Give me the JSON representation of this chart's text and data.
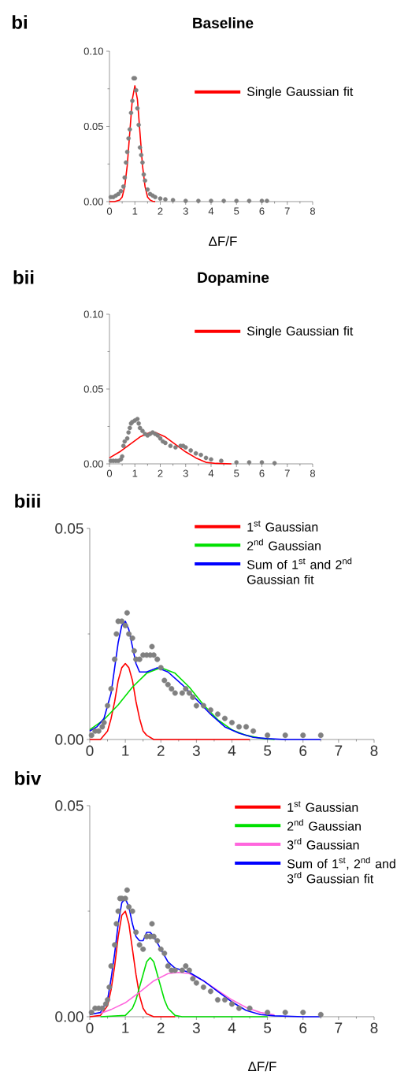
{
  "chart_data": [
    {
      "type": "scatter",
      "title": "Baseline",
      "xlabel": "ΔF/F",
      "annotations": [
        "**bi**"
      ],
      "xlim": [
        0,
        8
      ],
      "ylim": [
        0,
        0.1
      ],
      "xticks": [
        0,
        1,
        2,
        3,
        4,
        5,
        6,
        7,
        8
      ],
      "yticks": [
        {
          "value": 0,
          "label": "0.00"
        },
        {
          "value": 0.05,
          "label": "0.05"
        },
        {
          "value": 0.1,
          "label": "0.10"
        }
      ],
      "legend": "top right",
      "series": [
        {
          "type": "scatter",
          "marker": "circle",
          "color": "#808080",
          "x": [
            0.05,
            0.15,
            0.25,
            0.35,
            0.45,
            0.55,
            0.6,
            0.65,
            0.7,
            0.75,
            0.8,
            0.85,
            0.9,
            0.95,
            1.0,
            1.05,
            1.1,
            1.15,
            1.2,
            1.25,
            1.3,
            1.35,
            1.4,
            1.5,
            1.6,
            1.7,
            1.8,
            2.0,
            2.2,
            2.5,
            3.0,
            3.5,
            4.0,
            4.5,
            5.0,
            5.5,
            6.0,
            6.2
          ],
          "values": [
            0.003,
            0.003,
            0.004,
            0.005,
            0.007,
            0.01,
            0.016,
            0.026,
            0.033,
            0.042,
            0.048,
            0.059,
            0.067,
            0.082,
            0.082,
            0.074,
            0.062,
            0.051,
            0.036,
            0.031,
            0.026,
            0.018,
            0.014,
            0.008,
            0.005,
            0.004,
            0.003,
            0.002,
            0.0015,
            0.001,
            0.0005,
            0.0005,
            0.0005,
            0.0005,
            0.0005,
            0.0005,
            0.0005,
            0.0005
          ]
        },
        {
          "type": "line",
          "name": "Single Gaussian fit",
          "color": "#ff0000",
          "x": [
            0.0,
            0.2,
            0.4,
            0.5,
            0.6,
            0.7,
            0.8,
            0.9,
            1.0,
            1.1,
            1.2,
            1.3,
            1.4,
            1.5,
            1.6,
            1.7,
            1.8
          ],
          "values": [
            0,
            0,
            0.001,
            0.003,
            0.01,
            0.024,
            0.046,
            0.068,
            0.077,
            0.068,
            0.046,
            0.024,
            0.01,
            0.003,
            0.001,
            0.0003,
            0
          ]
        }
      ]
    },
    {
      "type": "scatter",
      "title": "Dopamine",
      "annotations": [
        "**bii**"
      ],
      "xlim": [
        0,
        8
      ],
      "ylim": [
        0,
        0.1
      ],
      "xticks": [
        0,
        1,
        2,
        3,
        4,
        5,
        6,
        7,
        8
      ],
      "yticks": [
        {
          "value": 0,
          "label": "0.00"
        },
        {
          "value": 0.05,
          "label": "0.05"
        },
        {
          "value": 0.1,
          "label": "0.10"
        }
      ],
      "legend": "top right",
      "series": [
        {
          "type": "scatter",
          "marker": "circle",
          "color": "#808080",
          "x": [
            0.05,
            0.15,
            0.25,
            0.35,
            0.45,
            0.5,
            0.55,
            0.6,
            0.7,
            0.75,
            0.8,
            0.85,
            0.9,
            1.0,
            1.1,
            1.15,
            1.2,
            1.3,
            1.4,
            1.5,
            1.6,
            1.7,
            1.8,
            1.9,
            2.0,
            2.1,
            2.2,
            2.4,
            2.6,
            2.8,
            2.9,
            3.0,
            3.2,
            3.4,
            3.6,
            3.8,
            4.0,
            4.4,
            5.0,
            5.5,
            6.0,
            6.5
          ],
          "values": [
            0.002,
            0.002,
            0.002,
            0.002,
            0.003,
            0.005,
            0.012,
            0.015,
            0.017,
            0.021,
            0.024,
            0.027,
            0.028,
            0.029,
            0.03,
            0.027,
            0.024,
            0.022,
            0.02,
            0.019,
            0.02,
            0.021,
            0.02,
            0.019,
            0.017,
            0.015,
            0.014,
            0.012,
            0.011,
            0.012,
            0.012,
            0.011,
            0.009,
            0.007,
            0.006,
            0.004,
            0.003,
            0.002,
            0.001,
            0.001,
            0.001,
            0.0005
          ]
        },
        {
          "type": "line",
          "name": "Single Gaussian fit",
          "color": "#ff0000",
          "x": [
            0.0,
            0.4,
            0.8,
            1.2,
            1.6,
            1.8,
            2.2,
            2.6,
            3.0,
            3.4,
            3.8,
            4.2,
            4.8
          ],
          "values": [
            0.004,
            0.008,
            0.013,
            0.018,
            0.021,
            0.021,
            0.018,
            0.013,
            0.008,
            0.004,
            0.001,
            0.0003,
            0
          ]
        }
      ]
    },
    {
      "type": "scatter",
      "annotations": [
        "**biii**"
      ],
      "xlim": [
        0,
        8
      ],
      "ylim": [
        0,
        0.05
      ],
      "xticks": [
        0,
        1,
        2,
        3,
        4,
        5,
        6,
        7,
        8
      ],
      "yticks": [
        {
          "value": 0,
          "label": "0.00"
        },
        {
          "value": 0.05,
          "label": "0.05"
        }
      ],
      "legend": "top right",
      "series": [
        {
          "type": "scatter",
          "marker": "circle",
          "color": "#808080",
          "x": [
            0.05,
            0.15,
            0.25,
            0.35,
            0.4,
            0.5,
            0.6,
            0.7,
            0.75,
            0.8,
            0.9,
            1.0,
            1.05,
            1.1,
            1.2,
            1.25,
            1.3,
            1.4,
            1.5,
            1.6,
            1.7,
            1.75,
            1.8,
            1.9,
            2.0,
            2.1,
            2.2,
            2.3,
            2.4,
            2.6,
            2.7,
            2.8,
            2.9,
            3.0,
            3.2,
            3.4,
            3.6,
            3.8,
            4.0,
            4.2,
            4.4,
            4.6,
            5.0,
            5.5,
            6.0,
            6.5
          ],
          "values": [
            0.001,
            0.002,
            0.002,
            0.003,
            0.004,
            0.008,
            0.012,
            0.019,
            0.025,
            0.028,
            0.028,
            0.027,
            0.03,
            0.025,
            0.024,
            0.021,
            0.019,
            0.019,
            0.02,
            0.02,
            0.02,
            0.022,
            0.02,
            0.019,
            0.017,
            0.014,
            0.013,
            0.012,
            0.011,
            0.011,
            0.012,
            0.011,
            0.01,
            0.008,
            0.008,
            0.007,
            0.006,
            0.005,
            0.004,
            0.003,
            0.003,
            0.002,
            0.001,
            0.001,
            0.001,
            0.001
          ]
        },
        {
          "type": "line",
          "name": "1$^{st}$ Gaussian",
          "color": "#ff0000",
          "x": [
            0.0,
            0.3,
            0.5,
            0.6,
            0.7,
            0.8,
            0.9,
            1.0,
            1.1,
            1.2,
            1.3,
            1.4,
            1.5,
            1.6,
            1.8,
            4.5
          ],
          "values": [
            0,
            0,
            0.002,
            0.005,
            0.009,
            0.014,
            0.017,
            0.018,
            0.017,
            0.014,
            0.009,
            0.005,
            0.002,
            0.001,
            0,
            0
          ]
        },
        {
          "type": "line",
          "name": "2$^{nd}$ Gaussian",
          "color": "#00e000",
          "x": [
            0.0,
            0.4,
            0.8,
            1.2,
            1.6,
            2.0,
            2.4,
            2.8,
            3.2,
            3.6,
            4.0,
            4.4,
            4.8,
            5.2
          ],
          "values": [
            0.0023,
            0.0047,
            0.0082,
            0.0124,
            0.0157,
            0.017,
            0.0157,
            0.0124,
            0.0082,
            0.0047,
            0.0023,
            0.001,
            0.0003,
            0
          ]
        },
        {
          "type": "line",
          "name": "Sum of 1$^{st}$ and 2$^{nd}$ Gaussian fit",
          "color": "#0000ff",
          "x": [
            0.0,
            0.2,
            0.4,
            0.6,
            0.7,
            0.8,
            0.9,
            1.0,
            1.1,
            1.2,
            1.3,
            1.4,
            1.6,
            1.9,
            2.2,
            2.6,
            3.0,
            3.4,
            3.8,
            4.2,
            4.6,
            5.0,
            5.5,
            6.5
          ],
          "values": [
            0.002,
            0.003,
            0.005,
            0.011,
            0.017,
            0.023,
            0.027,
            0.028,
            0.026,
            0.022,
            0.018,
            0.016,
            0.016,
            0.017,
            0.016,
            0.013,
            0.0095,
            0.006,
            0.003,
            0.0015,
            0.0005,
            0.0002,
            0,
            0
          ]
        }
      ]
    },
    {
      "type": "scatter",
      "xlabel": "ΔF/F",
      "annotations": [
        "**biv**"
      ],
      "xlim": [
        0,
        8
      ],
      "ylim": [
        0,
        0.05
      ],
      "xticks": [
        0,
        1,
        2,
        3,
        4,
        5,
        6,
        7,
        8
      ],
      "yticks": [
        {
          "value": 0,
          "label": "0.00"
        },
        {
          "value": 0.05,
          "label": "0.05"
        }
      ],
      "legend": "top right",
      "series": [
        {
          "type": "scatter",
          "marker": "circle",
          "color": "#808080",
          "x": [
            0.05,
            0.15,
            0.25,
            0.35,
            0.45,
            0.5,
            0.55,
            0.6,
            0.7,
            0.75,
            0.8,
            0.85,
            0.9,
            1.0,
            1.05,
            1.1,
            1.2,
            1.3,
            1.4,
            1.5,
            1.6,
            1.7,
            1.75,
            1.8,
            1.9,
            2.0,
            2.1,
            2.2,
            2.3,
            2.4,
            2.6,
            2.7,
            2.8,
            2.9,
            3.0,
            3.2,
            3.4,
            3.6,
            3.8,
            4.0,
            4.2,
            4.5,
            5.0,
            5.5,
            6.0,
            6.5
          ],
          "values": [
            0.001,
            0.002,
            0.002,
            0.002,
            0.003,
            0.004,
            0.007,
            0.012,
            0.017,
            0.022,
            0.025,
            0.028,
            0.028,
            0.028,
            0.03,
            0.026,
            0.025,
            0.02,
            0.017,
            0.016,
            0.019,
            0.019,
            0.022,
            0.019,
            0.018,
            0.016,
            0.015,
            0.012,
            0.011,
            0.011,
            0.011,
            0.012,
            0.011,
            0.009,
            0.008,
            0.007,
            0.006,
            0.004,
            0.004,
            0.003,
            0.002,
            0.002,
            0.001,
            0.001,
            0.001,
            0.0005
          ]
        },
        {
          "type": "line",
          "name": "1$^{st}$ Gaussian",
          "color": "#ff0000",
          "x": [
            0.0,
            0.3,
            0.5,
            0.6,
            0.7,
            0.8,
            0.9,
            1.0,
            1.1,
            1.2,
            1.3,
            1.4,
            1.5,
            1.6,
            1.8,
            2.4
          ],
          "values": [
            0,
            0.0003,
            0.0026,
            0.0064,
            0.012,
            0.019,
            0.024,
            0.025,
            0.022,
            0.016,
            0.01,
            0.005,
            0.002,
            0.0007,
            0,
            0
          ]
        },
        {
          "type": "line",
          "name": "2$^{nd}$ Gaussian",
          "color": "#00e000",
          "x": [
            0.3,
            1.0,
            1.2,
            1.3,
            1.4,
            1.5,
            1.6,
            1.7,
            1.8,
            1.9,
            2.0,
            2.1,
            2.2,
            2.4,
            2.6,
            5.0
          ],
          "values": [
            0,
            0.0003,
            0.002,
            0.004,
            0.007,
            0.01,
            0.013,
            0.014,
            0.013,
            0.01,
            0.007,
            0.004,
            0.002,
            0.0003,
            0,
            0
          ]
        },
        {
          "type": "line",
          "name": "3$^{rd}$ Gaussian",
          "color": "#ff66dd",
          "x": [
            0.3,
            0.6,
            1.0,
            1.4,
            1.8,
            2.2,
            2.5,
            2.8,
            3.2,
            3.6,
            4.0,
            4.4,
            4.8,
            5.2
          ],
          "values": [
            0.0008,
            0.0017,
            0.0033,
            0.0058,
            0.0085,
            0.0102,
            0.0105,
            0.0102,
            0.0085,
            0.0062,
            0.004,
            0.0022,
            0.001,
            0.0004
          ]
        },
        {
          "type": "line",
          "name": "Sum of 1$^{st}$, 2$^{nd}$ and 3$^{rd}$ Gaussian fit",
          "color": "#0000ff",
          "x": [
            0.0,
            0.3,
            0.5,
            0.6,
            0.7,
            0.8,
            0.9,
            1.0,
            1.1,
            1.2,
            1.3,
            1.4,
            1.5,
            1.6,
            1.7,
            1.8,
            2.0,
            2.2,
            2.4,
            2.6,
            2.8,
            3.2,
            3.6,
            4.0,
            4.4,
            4.8,
            5.2,
            6.0,
            6.5
          ],
          "values": [
            0.0005,
            0.001,
            0.004,
            0.009,
            0.015,
            0.022,
            0.027,
            0.028,
            0.026,
            0.022,
            0.019,
            0.018,
            0.018,
            0.02,
            0.02,
            0.019,
            0.016,
            0.013,
            0.0115,
            0.011,
            0.0105,
            0.0085,
            0.006,
            0.0035,
            0.0015,
            0.0005,
            0.0002,
            0,
            0
          ]
        }
      ]
    }
  ]
}
